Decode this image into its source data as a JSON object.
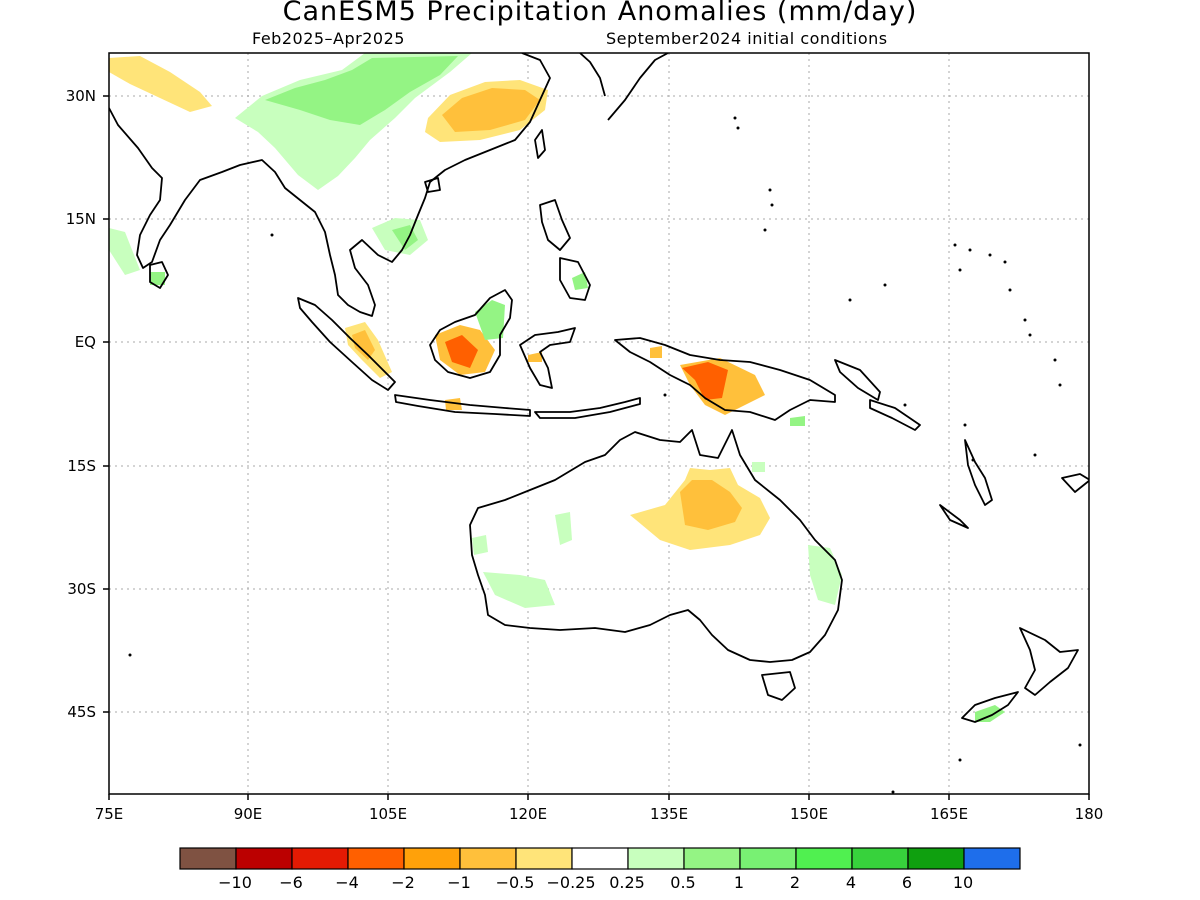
{
  "title": "CanESM5 Precipitation Anomalies (mm/day)",
  "subtitle_left": "Feb2025–Apr2025",
  "subtitle_right": "September2024 initial conditions",
  "map": {
    "lon_range": [
      75,
      180
    ],
    "lat_range": [
      -55,
      35
    ],
    "lon_ticks": [
      "75E",
      "90E",
      "105E",
      "120E",
      "135E",
      "150E",
      "165E",
      "180"
    ],
    "lat_ticks": [
      "30N",
      "15N",
      "EQ",
      "15S",
      "30S",
      "45S"
    ],
    "gridlines": true
  },
  "colorbar": {
    "colors": [
      "#7f5242",
      "#bb0000",
      "#e41a03",
      "#ff6000",
      "#ffa10a",
      "#ffc03b",
      "#ffe479",
      "#ffffff",
      "#c8ffbe",
      "#94f484",
      "#78f173",
      "#50f050",
      "#37d23c",
      "#0fa00f",
      "#1e6eeb"
    ],
    "labels": [
      "−10",
      "−6",
      "−4",
      "−2",
      "−1",
      "−0.5",
      "−0.25",
      "0.25",
      "0.5",
      "1",
      "2",
      "4",
      "6",
      "10"
    ]
  }
}
